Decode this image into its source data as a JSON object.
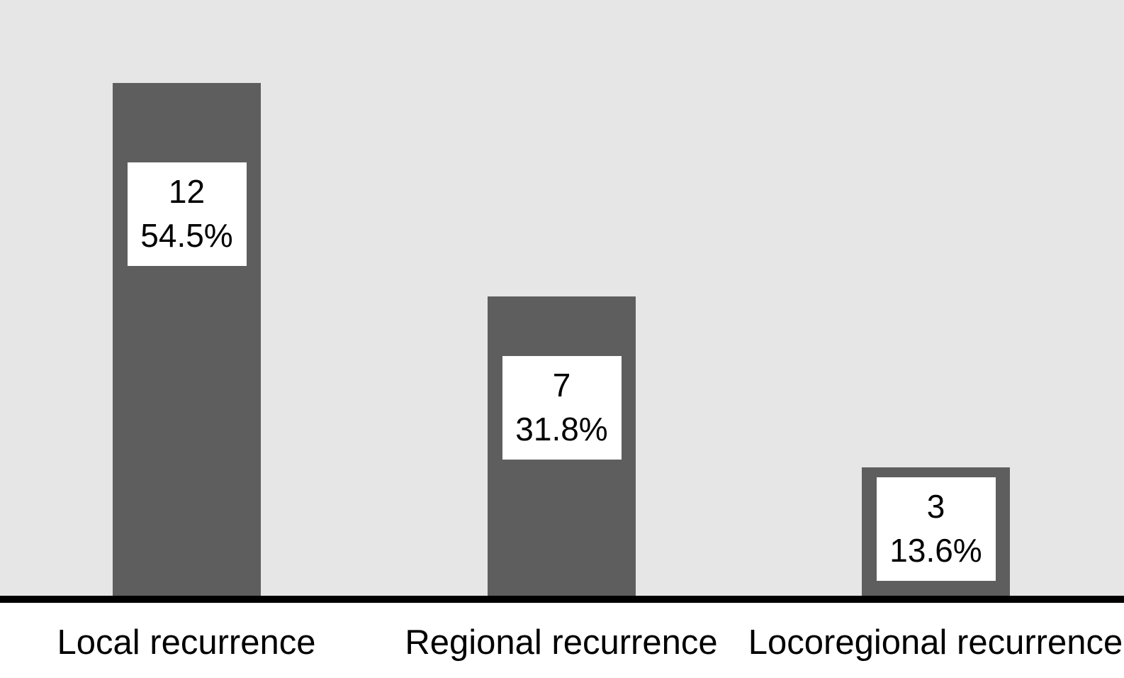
{
  "colors": {
    "plot_background": "#e6e6e6",
    "bar_fill": "#5e5e5e",
    "axis_line": "#000000",
    "value_box_background": "#ffffff",
    "text": "#000000"
  },
  "chart_data": {
    "type": "bar",
    "title": "",
    "xlabel": "",
    "ylabel": "",
    "legend": null,
    "grid": false,
    "ylim": [
      0,
      14
    ],
    "categories": [
      "Local recurrence",
      "Regional recurrence",
      "Locoregional recurrence"
    ],
    "values": [
      12,
      7,
      3
    ],
    "bars": [
      {
        "category": "Local recurrence",
        "count": "12",
        "percent": "54.5%"
      },
      {
        "category": "Regional recurrence",
        "count": "7",
        "percent": "31.8%"
      },
      {
        "category": "Locoregional recurrence",
        "count": "3",
        "percent": "13.6%"
      }
    ]
  }
}
